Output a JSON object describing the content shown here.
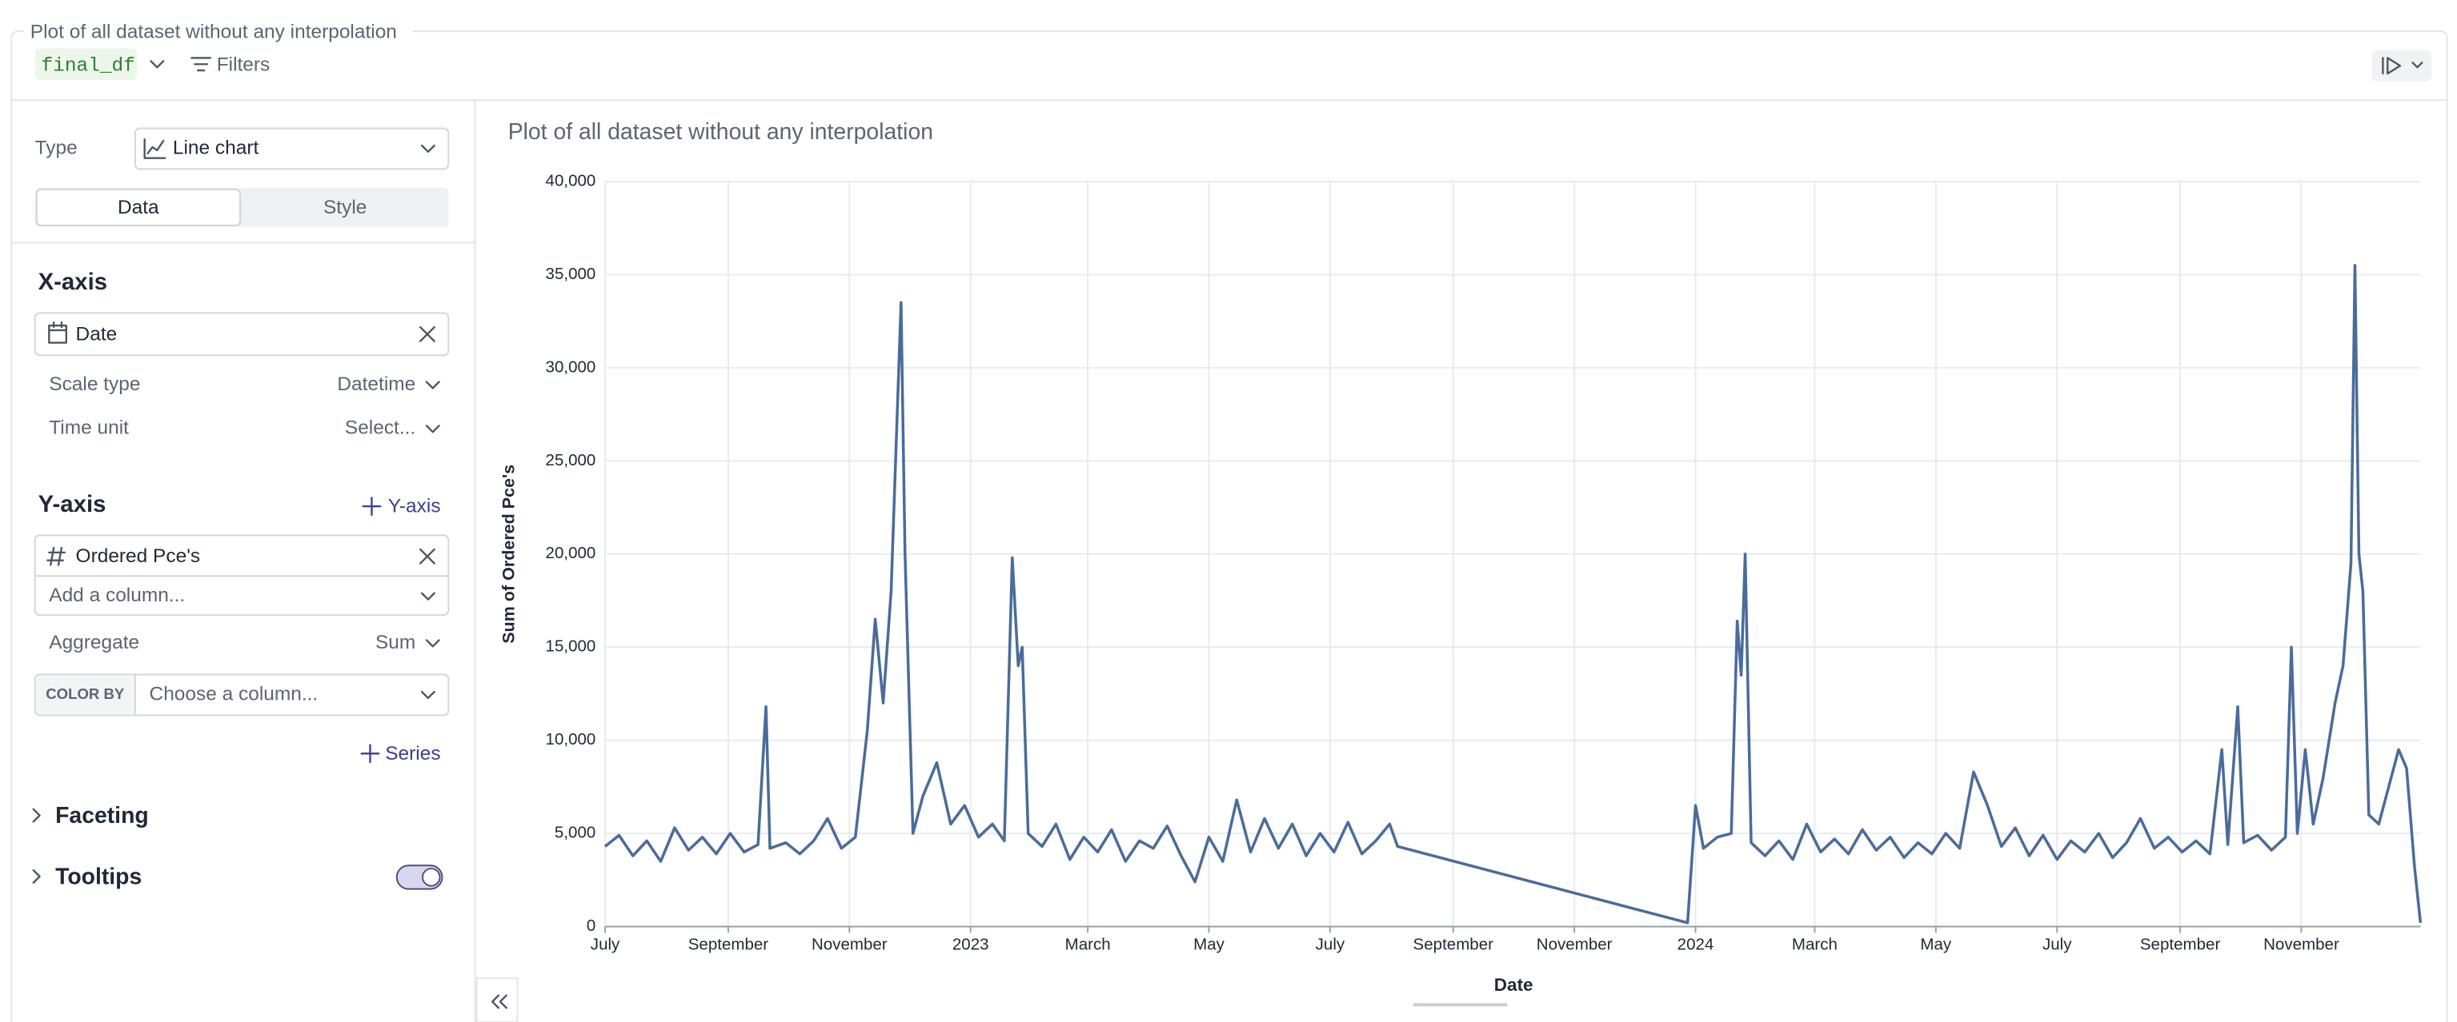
{
  "header": {
    "title": "Plot of all dataset without any interpolation",
    "dataset": "final_df",
    "filters": "Filters"
  },
  "panel": {
    "type_label": "Type",
    "type_value": "Line chart",
    "tabs": [
      "Data",
      "Style"
    ],
    "x_axis": {
      "heading": "X-axis",
      "column": "Date",
      "scale_type_label": "Scale type",
      "scale_type": "Datetime",
      "time_unit_label": "Time unit",
      "time_unit": "Select..."
    },
    "y_axis": {
      "heading": "Y-axis",
      "add": "Y-axis",
      "column": "Ordered Pce's",
      "add_column": "Add a column...",
      "aggregate_label": "Aggregate",
      "aggregate": "Sum"
    },
    "color_by": {
      "label": "COLOR BY",
      "placeholder": "Choose a column..."
    },
    "add_series": "Series",
    "sections": [
      "Faceting",
      "Tooltips"
    ]
  },
  "chart_data": {
    "type": "line",
    "title": "Plot of all dataset without any interpolation",
    "x_label": "Date",
    "y_label": "Sum of Ordered Pce's",
    "color": "#4a6c9b",
    "grid": true,
    "xlim": [
      "2022-07-01",
      "2024-12-31"
    ],
    "xticks": [
      {
        "value": "2022-07-01",
        "label": "July"
      },
      {
        "value": "2022-09-01",
        "label": "September"
      },
      {
        "value": "2022-11-01",
        "label": "November"
      },
      {
        "value": "2023-01-01",
        "label": "2023"
      },
      {
        "value": "2023-03-01",
        "label": "March"
      },
      {
        "value": "2023-05-01",
        "label": "May"
      },
      {
        "value": "2023-07-01",
        "label": "July"
      },
      {
        "value": "2023-09-01",
        "label": "September"
      },
      {
        "value": "2023-11-01",
        "label": "November"
      },
      {
        "value": "2024-01-01",
        "label": "2024"
      },
      {
        "value": "2024-03-01",
        "label": "March"
      },
      {
        "value": "2024-05-01",
        "label": "May"
      },
      {
        "value": "2024-07-01",
        "label": "July"
      },
      {
        "value": "2024-09-01",
        "label": "September"
      },
      {
        "value": "2024-11-01",
        "label": "November"
      }
    ],
    "ylim": [
      0,
      40000
    ],
    "yticks": [
      0,
      {
        "value": 5000,
        "label": "5,000"
      },
      {
        "value": 10000,
        "label": "10,000"
      },
      {
        "value": 15000,
        "label": "15,000"
      },
      {
        "value": 20000,
        "label": "20,000"
      },
      {
        "value": 25000,
        "label": "25,000"
      },
      {
        "value": 30000,
        "label": "30,000"
      },
      {
        "value": 35000,
        "label": "35,000"
      },
      {
        "value": 40000,
        "label": "40,000"
      }
    ],
    "x": [
      "2022-07-01",
      "2022-07-08",
      "2022-07-15",
      "2022-07-22",
      "2022-07-29",
      "2022-08-05",
      "2022-08-12",
      "2022-08-19",
      "2022-08-26",
      "2022-09-02",
      "2022-09-09",
      "2022-09-16",
      "2022-09-20",
      "2022-09-22",
      "2022-09-30",
      "2022-10-07",
      "2022-10-14",
      "2022-10-21",
      "2022-10-28",
      "2022-11-04",
      "2022-11-10",
      "2022-11-14",
      "2022-11-18",
      "2022-11-22",
      "2022-11-27",
      "2022-11-29",
      "2022-12-03",
      "2022-12-08",
      "2022-12-15",
      "2022-12-22",
      "2022-12-29",
      "2023-01-05",
      "2023-01-12",
      "2023-01-18",
      "2023-01-22",
      "2023-01-25",
      "2023-01-27",
      "2023-01-30",
      "2023-02-06",
      "2023-02-13",
      "2023-02-20",
      "2023-02-27",
      "2023-03-06",
      "2023-03-13",
      "2023-03-20",
      "2023-03-27",
      "2023-04-03",
      "2023-04-10",
      "2023-04-17",
      "2023-04-24",
      "2023-05-01",
      "2023-05-08",
      "2023-05-15",
      "2023-05-22",
      "2023-05-29",
      "2023-06-05",
      "2023-06-12",
      "2023-06-19",
      "2023-06-26",
      "2023-07-03",
      "2023-07-10",
      "2023-07-17",
      "2023-07-24",
      "2023-07-31",
      "2023-08-04",
      "2023-12-28",
      "2024-01-01",
      "2024-01-05",
      "2024-01-12",
      "2024-01-19",
      "2024-01-22",
      "2024-01-24",
      "2024-01-26",
      "2024-01-29",
      "2024-02-05",
      "2024-02-12",
      "2024-02-19",
      "2024-02-26",
      "2024-03-04",
      "2024-03-11",
      "2024-03-18",
      "2024-03-25",
      "2024-04-01",
      "2024-04-08",
      "2024-04-15",
      "2024-04-22",
      "2024-04-29",
      "2024-05-06",
      "2024-05-13",
      "2024-05-20",
      "2024-05-27",
      "2024-06-03",
      "2024-06-10",
      "2024-06-17",
      "2024-06-24",
      "2024-07-01",
      "2024-07-08",
      "2024-07-15",
      "2024-07-22",
      "2024-07-29",
      "2024-08-05",
      "2024-08-12",
      "2024-08-19",
      "2024-08-26",
      "2024-09-02",
      "2024-09-09",
      "2024-09-16",
      "2024-09-22",
      "2024-09-25",
      "2024-09-30",
      "2024-10-03",
      "2024-10-10",
      "2024-10-17",
      "2024-10-24",
      "2024-10-27",
      "2024-10-30",
      "2024-11-03",
      "2024-11-07",
      "2024-11-12",
      "2024-11-18",
      "2024-11-22",
      "2024-11-26",
      "2024-11-28",
      "2024-11-30",
      "2024-12-02",
      "2024-12-05",
      "2024-12-10",
      "2024-12-15",
      "2024-12-20",
      "2024-12-24",
      "2024-12-28",
      "2024-12-31"
    ],
    "values": [
      4300,
      4900,
      3800,
      4600,
      3500,
      5300,
      4100,
      4800,
      3900,
      5000,
      4000,
      4400,
      11800,
      4200,
      4500,
      3900,
      4600,
      5800,
      4200,
      4800,
      10500,
      16500,
      12000,
      18000,
      33500,
      20000,
      5000,
      7000,
      8800,
      5500,
      6500,
      4800,
      5500,
      4600,
      19800,
      14000,
      15000,
      5000,
      4300,
      5500,
      3600,
      4800,
      4000,
      5200,
      3500,
      4600,
      4200,
      5400,
      3800,
      2400,
      4800,
      3500,
      6800,
      4000,
      5800,
      4200,
      5500,
      3800,
      5000,
      4000,
      5600,
      3900,
      4600,
      5500,
      4300,
      200,
      6500,
      4200,
      4800,
      5000,
      16400,
      13500,
      20000,
      4500,
      3800,
      4600,
      3600,
      5500,
      4000,
      4700,
      3900,
      5200,
      4100,
      4800,
      3700,
      4500,
      3900,
      5000,
      4200,
      8300,
      6500,
      4300,
      5300,
      3800,
      4900,
      3600,
      4600,
      4000,
      5000,
      3700,
      4500,
      5800,
      4200,
      4800,
      4000,
      4600,
      3900,
      9500,
      4400,
      11800,
      4500,
      4900,
      4100,
      4800,
      15000,
      5000,
      9500,
      5500,
      8000,
      12000,
      14000,
      19500,
      35500,
      20000,
      18000,
      6000,
      5500,
      7500,
      9500,
      8500,
      3200,
      200
    ]
  }
}
